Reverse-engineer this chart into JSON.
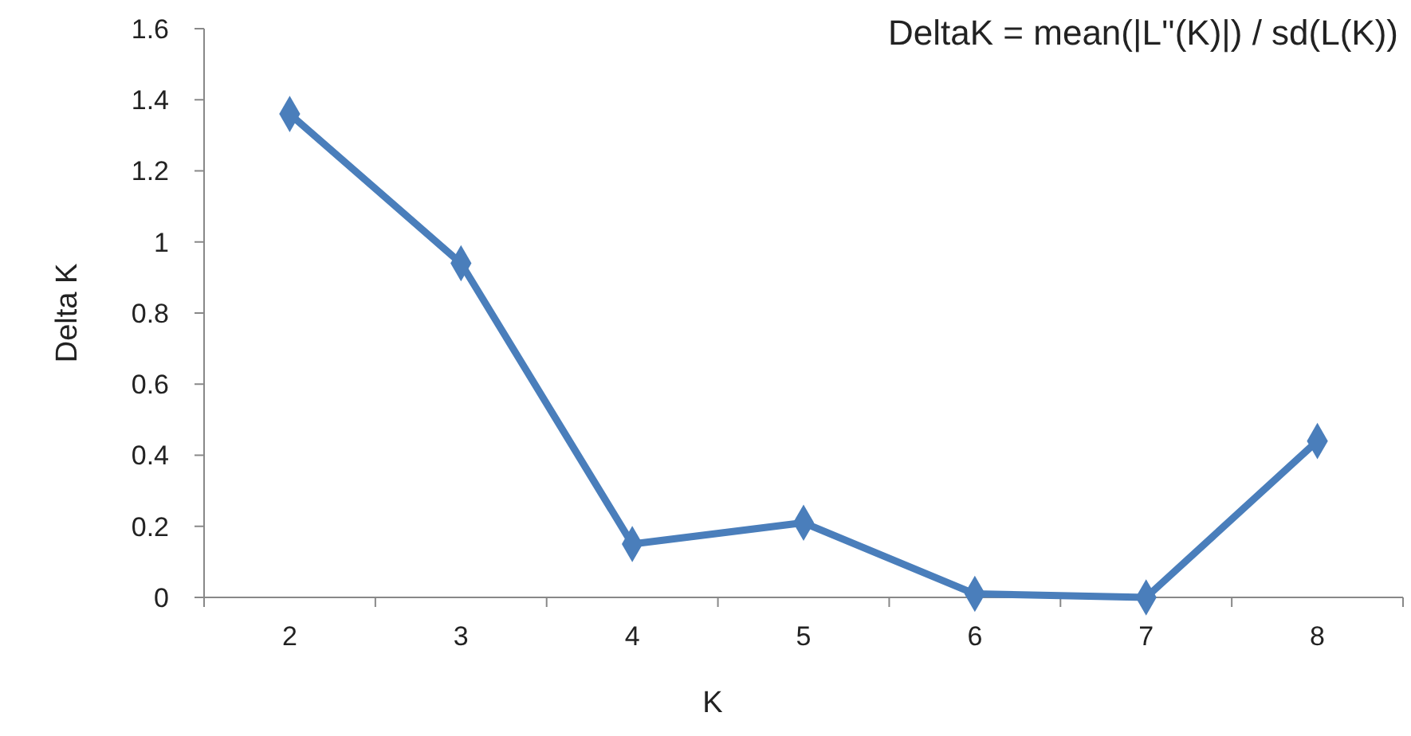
{
  "chart_data": {
    "type": "line",
    "annotations": [
      "DeltaK = mean(|L''(K)|) / sd(L(K))"
    ],
    "xlabel": "K",
    "ylabel": "Delta K",
    "categories": [
      "2",
      "3",
      "4",
      "5",
      "6",
      "7",
      "8"
    ],
    "series": [
      {
        "color": "#4a7ebb",
        "values": [
          1.36,
          0.94,
          0.15,
          0.21,
          0.01,
          0,
          0.44
        ]
      }
    ],
    "ylim": [
      0,
      1.6
    ],
    "yticks": [
      0,
      0.2,
      0.4,
      0.6,
      0.8,
      1,
      1.2,
      1.4,
      1.6
    ],
    "grid": false,
    "marker": "diamond",
    "line_style": "solid"
  }
}
